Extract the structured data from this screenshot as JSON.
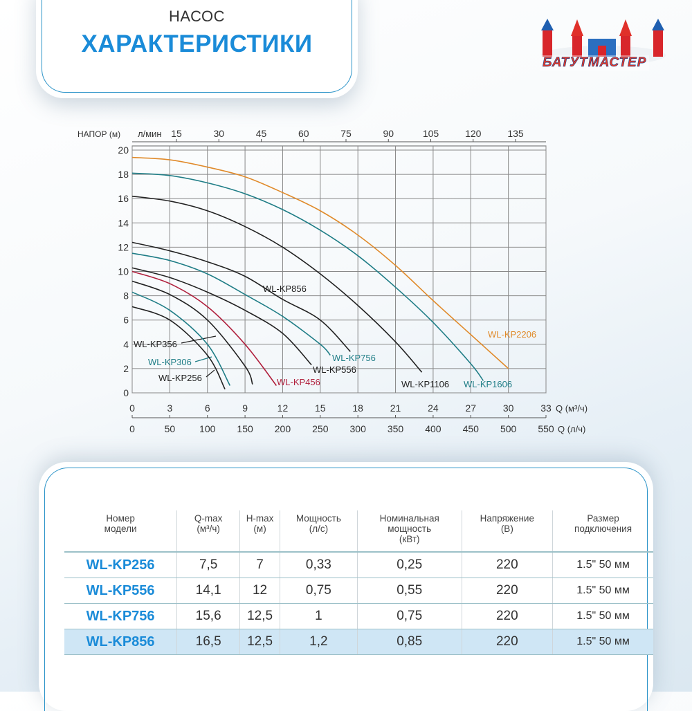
{
  "header": {
    "subtitle": "НАСОС",
    "title": "ХАРАКТЕРИСТИКИ"
  },
  "logo": {
    "text": "БАТУТМАСТЕР"
  },
  "chart_data": {
    "type": "line",
    "ylabel": "НАПОР (м)",
    "top_axis_label": "л/мин",
    "xlabel": "Q (м³/ч)",
    "xlabel2": "Q (л/ч)",
    "xlim": [
      0,
      33
    ],
    "ylim": [
      0,
      20
    ],
    "grid": true,
    "x_ticks": [
      0,
      3,
      6,
      9,
      12,
      15,
      18,
      21,
      24,
      27,
      30,
      33
    ],
    "y_ticks": [
      0,
      2,
      4,
      6,
      8,
      10,
      12,
      14,
      16,
      18,
      20
    ],
    "top_ticks": [
      15,
      30,
      45,
      60,
      75,
      90,
      105,
      120,
      135
    ],
    "bottom2_ticks": [
      0,
      50,
      100,
      150,
      200,
      250,
      300,
      350,
      400,
      450,
      500,
      550
    ],
    "series": [
      {
        "name": "WL-KP2206",
        "color": "#e08a2a",
        "x": [
          0,
          3,
          6,
          9,
          12,
          15,
          18,
          21,
          24,
          27,
          30
        ],
        "y": [
          19.4,
          19.2,
          18.6,
          17.8,
          16.5,
          15.0,
          13.0,
          10.5,
          7.6,
          4.8,
          2.0
        ]
      },
      {
        "name": "WL-KP1606",
        "color": "#1f7d86",
        "x": [
          0,
          3,
          6,
          9,
          12,
          15,
          18,
          21,
          24,
          27,
          28
        ],
        "y": [
          18.1,
          17.9,
          17.3,
          16.4,
          15.1,
          13.4,
          11.3,
          8.7,
          5.8,
          2.4,
          1.0
        ]
      },
      {
        "name": "WL-KP1106",
        "color": "#222222",
        "x": [
          0,
          3,
          6,
          9,
          12,
          15,
          18,
          21,
          23.1
        ],
        "y": [
          16.2,
          15.8,
          15.0,
          13.7,
          12.0,
          9.8,
          7.2,
          4.2,
          1.7
        ]
      },
      {
        "name": "WL-KP856",
        "color": "#222222",
        "x": [
          0,
          3,
          6,
          9,
          12,
          15,
          17.4
        ],
        "y": [
          12.4,
          11.7,
          10.8,
          9.6,
          7.7,
          6.0,
          3.4
        ]
      },
      {
        "name": "WL-KP756",
        "color": "#1f7d86",
        "x": [
          0,
          3,
          6,
          9,
          12,
          15,
          15.8
        ],
        "y": [
          11.5,
          10.9,
          9.8,
          8.1,
          6.3,
          4.0,
          3.1
        ]
      },
      {
        "name": "WL-KP556",
        "color": "#222222",
        "x": [
          0,
          3,
          6,
          9,
          12,
          14.3
        ],
        "y": [
          10.3,
          9.5,
          8.3,
          6.8,
          4.9,
          2.3
        ]
      },
      {
        "name": "WL-KP456",
        "color": "#b01f3c",
        "x": [
          0,
          3,
          6,
          9,
          11.5
        ],
        "y": [
          10.0,
          9.0,
          7.1,
          4.0,
          0.6
        ]
      },
      {
        "name": "WL-KP356",
        "color": "#222222",
        "x": [
          0,
          3,
          6,
          9,
          9.6
        ],
        "y": [
          9.2,
          8.1,
          6.0,
          2.2,
          0.7
        ]
      },
      {
        "name": "WL-KP306",
        "color": "#1f7d86",
        "x": [
          0,
          3,
          6,
          7.8
        ],
        "y": [
          8.3,
          6.8,
          4.0,
          0.6
        ]
      },
      {
        "name": "WL-KP256",
        "color": "#222222",
        "x": [
          0,
          3,
          6,
          7.4
        ],
        "y": [
          7.1,
          6.0,
          3.1,
          0.3
        ]
      }
    ]
  },
  "table": {
    "headers": [
      "Номер\nмодели",
      "Q-max\n(м³/ч)",
      "H-max\n(м)",
      "Мощность\n(л/с)",
      "Номинальная\nмощность\n(кВт)",
      "Напряжение\n(В)",
      "Размер\nподключения"
    ],
    "rows": [
      [
        "WL-KP256",
        "7,5",
        "7",
        "0,33",
        "0,25",
        "220",
        "1.5\" 50 мм"
      ],
      [
        "WL-KP556",
        "14,1",
        "12",
        "0,75",
        "0,55",
        "220",
        "1.5\" 50 мм"
      ],
      [
        "WL-KP756",
        "15,6",
        "12,5",
        "1",
        "0,75",
        "220",
        "1.5\" 50 мм"
      ],
      [
        "WL-KP856",
        "16,5",
        "12,5",
        "1,2",
        "0,85",
        "220",
        "1.5\" 50 мм"
      ]
    ]
  }
}
